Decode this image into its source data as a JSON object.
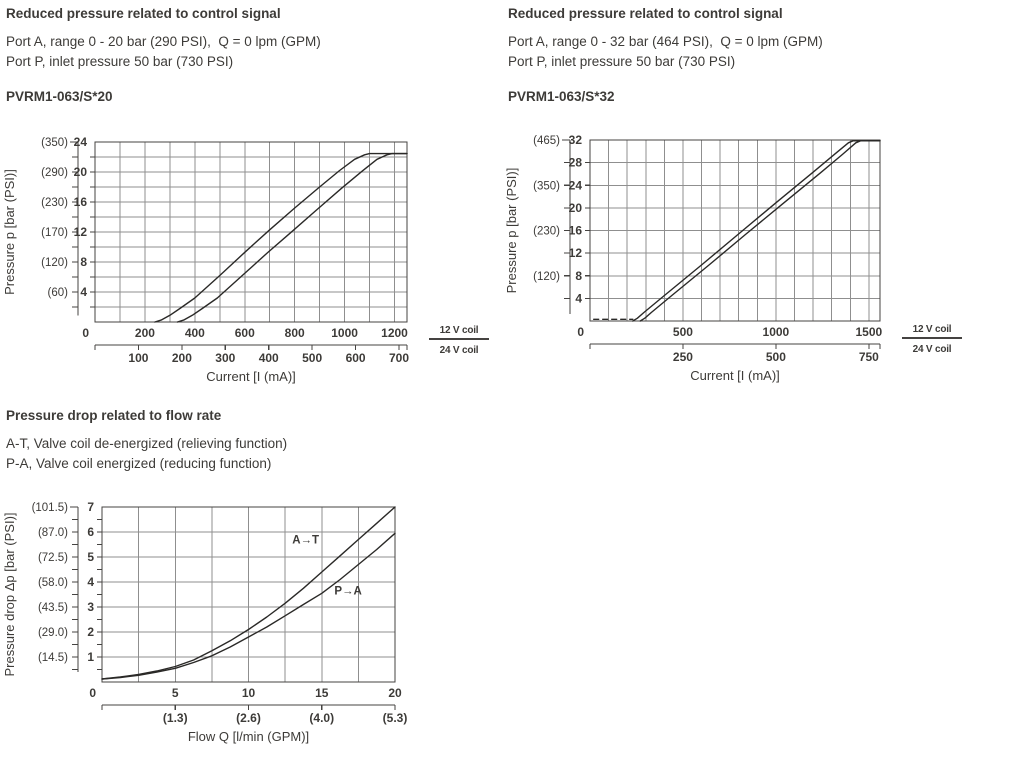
{
  "colors": {
    "text": "#3d3b38",
    "grid": "#8f8f8f",
    "axis": "#454341",
    "curve": "#2a2927"
  },
  "sections": {
    "top_left": {
      "title": "Reduced pressure related to control signal",
      "line1": "Port A, range 0 - 20 bar (290 PSI),  Q = 0 lpm (GPM)",
      "line2": "Port P, inlet pressure 50 bar (730 PSI)",
      "model": "PVRM1-063/S*20"
    },
    "top_right": {
      "title": "Reduced pressure related to control signal",
      "line1": "Port A, range 0 - 32 bar (464 PSI),  Q = 0 lpm (GPM)",
      "line2": "Port P, inlet pressure 50 bar (730 PSI)",
      "model": "PVRM1-063/S*32"
    },
    "bottom": {
      "title": "Pressure drop related to flow rate",
      "line1": "A-T, Valve coil de-energized (relieving function)",
      "line2": "P-A, Valve coil energized (reducing function)"
    }
  },
  "chart_data": [
    {
      "id": "pvrm-s20",
      "type": "line",
      "title": "PVRM1-063/S*20",
      "x_range": [
        0,
        1250
      ],
      "grid": {
        "x_step": 100,
        "y_step": 2
      },
      "x_axis": {
        "label": "Current [I (mA)]",
        "primary": {
          "name": "12 V coil",
          "ticks": [
            {
              "v": 0,
              "label": "0"
            },
            {
              "v": 200,
              "label": "200"
            },
            {
              "v": 400,
              "label": "400"
            },
            {
              "v": 600,
              "label": "600"
            },
            {
              "v": 800,
              "label": "800"
            },
            {
              "v": 1000,
              "label": "1000"
            },
            {
              "v": 1200,
              "label": "1200"
            }
          ]
        },
        "secondary": {
          "name": "24 V coil",
          "factor": 1.74,
          "ticks": [
            {
              "v": 100,
              "label": "100"
            },
            {
              "v": 200,
              "label": "200"
            },
            {
              "v": 300,
              "label": "300"
            },
            {
              "v": 400,
              "label": "400"
            },
            {
              "v": 500,
              "label": "500"
            },
            {
              "v": 600,
              "label": "600"
            },
            {
              "v": 700,
              "label": "700"
            }
          ]
        }
      },
      "y_axis": {
        "label": "Pressure p [bar (PSI)]",
        "range": [
          0,
          24
        ],
        "bar_ticks": [
          {
            "v": 24,
            "label": "24"
          },
          {
            "v": 20,
            "label": "20"
          },
          {
            "v": 16,
            "label": "16"
          },
          {
            "v": 12,
            "label": "12"
          },
          {
            "v": 8,
            "label": "8"
          },
          {
            "v": 4,
            "label": "4"
          }
        ],
        "psi_ticks": [
          {
            "v": 24,
            "label": "(350)"
          },
          {
            "v": 20,
            "label": "(290)"
          },
          {
            "v": 16,
            "label": "(230)"
          },
          {
            "v": 12,
            "label": "(170)"
          },
          {
            "v": 8,
            "label": "(120)"
          },
          {
            "v": 4,
            "label": "(60)"
          }
        ]
      },
      "legend": {
        "top": "12 V coil",
        "bottom": "24 V coil"
      },
      "series": [
        {
          "name": "pressure-rise-upper",
          "points": [
            [
              240,
              0
            ],
            [
              265,
              0.25
            ],
            [
              300,
              0.9
            ],
            [
              340,
              1.8
            ],
            [
              400,
              3.2
            ],
            [
              500,
              6.2
            ],
            [
              600,
              9.3
            ],
            [
              700,
              12.3
            ],
            [
              800,
              15.2
            ],
            [
              900,
              18.0
            ],
            [
              980,
              20.2
            ],
            [
              1040,
              21.7
            ],
            [
              1080,
              22.3
            ],
            [
              1100,
              22.45
            ],
            [
              1250,
              22.45
            ]
          ]
        },
        {
          "name": "pressure-rise-lower",
          "points": [
            [
              330,
              0
            ],
            [
              355,
              0.25
            ],
            [
              390,
              0.9
            ],
            [
              430,
              1.8
            ],
            [
              490,
              3.2
            ],
            [
              590,
              6.2
            ],
            [
              690,
              9.2
            ],
            [
              790,
              12.1
            ],
            [
              890,
              15.0
            ],
            [
              990,
              17.9
            ],
            [
              1070,
              20.1
            ],
            [
              1130,
              21.7
            ],
            [
              1170,
              22.3
            ],
            [
              1190,
              22.45
            ],
            [
              1250,
              22.45
            ]
          ]
        }
      ]
    },
    {
      "id": "pvrm-s32",
      "type": "line",
      "title": "PVRM1-063/S*32",
      "x_range": [
        0,
        1560
      ],
      "grid": {
        "x_step": 100,
        "y_step": 4
      },
      "x_axis": {
        "label": "Current [I (mA)]",
        "primary": {
          "name": "12 V coil",
          "ticks": [
            {
              "v": 0,
              "label": "0"
            },
            {
              "v": 500,
              "label": "500"
            },
            {
              "v": 1000,
              "label": "1000"
            },
            {
              "v": 1500,
              "label": "1500"
            }
          ]
        },
        "secondary": {
          "name": "24 V coil",
          "factor": 2,
          "ticks": [
            {
              "v": 250,
              "label": "250"
            },
            {
              "v": 500,
              "label": "500"
            },
            {
              "v": 750,
              "label": "750"
            }
          ]
        }
      },
      "y_axis": {
        "label": "Pressure p [bar (PSI)]",
        "range": [
          0,
          32
        ],
        "bar_ticks": [
          {
            "v": 32,
            "label": "32"
          },
          {
            "v": 28,
            "label": "28"
          },
          {
            "v": 24,
            "label": "24"
          },
          {
            "v": 20,
            "label": "20"
          },
          {
            "v": 16,
            "label": "16"
          },
          {
            "v": 12,
            "label": "12"
          },
          {
            "v": 8,
            "label": "8"
          },
          {
            "v": 4,
            "label": "4"
          }
        ],
        "psi_ticks": [
          {
            "v": 32,
            "label": "(465)"
          },
          {
            "v": 24,
            "label": "(350)"
          },
          {
            "v": 16,
            "label": "(230)"
          },
          {
            "v": 8,
            "label": "(120)"
          }
        ]
      },
      "legend": {
        "top": "12 V coil",
        "bottom": "24 V coil"
      },
      "series": [
        {
          "name": "zero-signal-dashed",
          "dashed": true,
          "points": [
            [
              20,
              0.3
            ],
            [
              230,
              0.3
            ]
          ]
        },
        {
          "name": "pressure-rise-upper",
          "points": [
            [
              230,
              0
            ],
            [
              255,
              0.5
            ],
            [
              290,
              1.5
            ],
            [
              400,
              4.5
            ],
            [
              600,
              9.9
            ],
            [
              800,
              15.4
            ],
            [
              1000,
              20.9
            ],
            [
              1200,
              26.3
            ],
            [
              1320,
              29.6
            ],
            [
              1390,
              31.5
            ],
            [
              1415,
              31.85
            ],
            [
              1560,
              31.85
            ]
          ]
        },
        {
          "name": "pressure-rise-lower",
          "points": [
            [
              270,
              0
            ],
            [
              295,
              0.5
            ],
            [
              330,
              1.5
            ],
            [
              440,
              4.5
            ],
            [
              640,
              9.9
            ],
            [
              840,
              15.4
            ],
            [
              1040,
              20.8
            ],
            [
              1240,
              26.2
            ],
            [
              1360,
              29.5
            ],
            [
              1430,
              31.5
            ],
            [
              1455,
              31.85
            ],
            [
              1560,
              31.85
            ]
          ]
        }
      ]
    },
    {
      "id": "dp-flow",
      "type": "line",
      "title": "Pressure drop related to flow rate",
      "x_range": [
        0,
        20
      ],
      "grid": {
        "x_step": 2.5,
        "y_step": 1
      },
      "x_axis": {
        "label": "Flow Q [l/min (GPM)]",
        "primary": {
          "name": "l/min",
          "ticks": [
            {
              "v": 0,
              "label": "0"
            },
            {
              "v": 5,
              "label": "5"
            },
            {
              "v": 10,
              "label": "10"
            },
            {
              "v": 15,
              "label": "15"
            },
            {
              "v": 20,
              "label": "20"
            }
          ]
        },
        "secondary": {
          "name": "GPM",
          "factor": 1,
          "ticks": [
            {
              "v": 5,
              "label": "(1.3)"
            },
            {
              "v": 10,
              "label": "(2.6)"
            },
            {
              "v": 15,
              "label": "(4.0)"
            },
            {
              "v": 20,
              "label": "(5.3)"
            }
          ]
        }
      },
      "y_axis": {
        "label": "Pressure drop Δp [bar (PSI)]",
        "range": [
          0,
          7
        ],
        "bar_ticks": [
          {
            "v": 7,
            "label": "7"
          },
          {
            "v": 6,
            "label": "6"
          },
          {
            "v": 5,
            "label": "5"
          },
          {
            "v": 4,
            "label": "4"
          },
          {
            "v": 3,
            "label": "3"
          },
          {
            "v": 2,
            "label": "2"
          },
          {
            "v": 1,
            "label": "1"
          }
        ],
        "psi_ticks": [
          {
            "v": 7,
            "label": "(101.5)"
          },
          {
            "v": 6,
            "label": "(87.0)"
          },
          {
            "v": 5,
            "label": "(72.5)"
          },
          {
            "v": 4,
            "label": "(58.0)"
          },
          {
            "v": 3,
            "label": "(43.5)"
          },
          {
            "v": 2,
            "label": "(29.0)"
          },
          {
            "v": 1,
            "label": "(14.5)"
          }
        ]
      },
      "series": [
        {
          "name": "A-T-relieving",
          "label": {
            "text": "A→T",
            "x": 13.9,
            "y": 5.55
          },
          "points": [
            [
              0,
              0.12
            ],
            [
              1.25,
              0.2
            ],
            [
              2.5,
              0.3
            ],
            [
              3.75,
              0.44
            ],
            [
              5,
              0.62
            ],
            [
              6.25,
              0.88
            ],
            [
              7.5,
              1.25
            ],
            [
              8.75,
              1.65
            ],
            [
              10,
              2.1
            ],
            [
              11.25,
              2.6
            ],
            [
              12.5,
              3.15
            ],
            [
              13.75,
              3.75
            ],
            [
              15,
              4.4
            ],
            [
              16.25,
              5.05
            ],
            [
              17.5,
              5.7
            ],
            [
              18.75,
              6.35
            ],
            [
              20,
              7.0
            ]
          ]
        },
        {
          "name": "P-A-reducing",
          "label": {
            "text": "P→A",
            "x": 16.8,
            "y": 3.5
          },
          "points": [
            [
              0,
              0.12
            ],
            [
              1.25,
              0.18
            ],
            [
              2.5,
              0.27
            ],
            [
              3.75,
              0.4
            ],
            [
              5,
              0.55
            ],
            [
              6.25,
              0.78
            ],
            [
              7.5,
              1.05
            ],
            [
              8.75,
              1.4
            ],
            [
              10,
              1.8
            ],
            [
              11.25,
              2.2
            ],
            [
              12.5,
              2.65
            ],
            [
              13.75,
              3.1
            ],
            [
              15,
              3.55
            ],
            [
              16.25,
              4.1
            ],
            [
              17.5,
              4.7
            ],
            [
              18.75,
              5.3
            ],
            [
              20,
              5.95
            ]
          ]
        }
      ]
    }
  ]
}
